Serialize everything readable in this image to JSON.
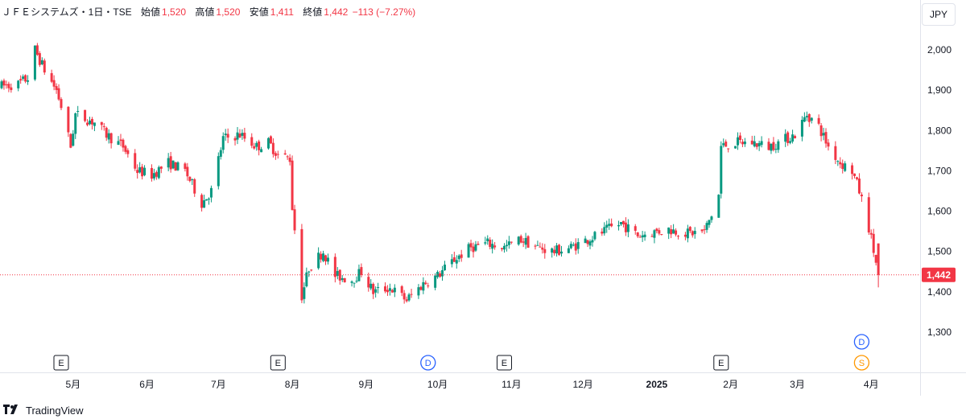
{
  "header": {
    "symbol": "ＪＦＥシステムズ・1日・TSE",
    "open_label": "始値",
    "open": "1,520",
    "high_label": "高値",
    "high": "1,520",
    "low_label": "安値",
    "low": "1,411",
    "close_label": "終値",
    "close": "1,442",
    "change": "−113 (−7.27%)"
  },
  "currency": "JPY",
  "branding": {
    "name": "TradingView"
  },
  "colors": {
    "up": "#089981",
    "down": "#f23645",
    "event_blue": "#2962ff",
    "event_orange": "#ff9800"
  },
  "chart_data": {
    "type": "candlestick",
    "title": "ＪＦＥシステムズ・1日・TSE",
    "currency": "JPY",
    "yticks": [
      1300,
      1400,
      1500,
      1600,
      1700,
      1800,
      1900,
      2000
    ],
    "ytick_labels": [
      "1,300",
      "1,400",
      "1,500",
      "1,600",
      "1,700",
      "1,800",
      "1,900",
      "2,000"
    ],
    "ylim": [
      1230,
      2080
    ],
    "x_labels": [
      {
        "label": "5月",
        "date": "2024-05-01"
      },
      {
        "label": "6月",
        "date": "2024-06-01"
      },
      {
        "label": "7月",
        "date": "2024-07-01"
      },
      {
        "label": "8月",
        "date": "2024-08-01"
      },
      {
        "label": "9月",
        "date": "2024-09-01"
      },
      {
        "label": "10月",
        "date": "2024-10-01"
      },
      {
        "label": "11月",
        "date": "2024-11-01"
      },
      {
        "label": "12月",
        "date": "2024-12-01"
      },
      {
        "label": "2025",
        "date": "2025-01-01",
        "bold": true
      },
      {
        "label": "2月",
        "date": "2025-02-01"
      },
      {
        "label": "3月",
        "date": "2025-03-01"
      },
      {
        "label": "4月",
        "date": "2025-04-01"
      }
    ],
    "last_price": 1442,
    "last_price_label": "1,442",
    "grid": false,
    "events": [
      {
        "type": "E",
        "date": "2024-04-26"
      },
      {
        "type": "E",
        "date": "2024-07-26"
      },
      {
        "type": "D",
        "date": "2024-09-27"
      },
      {
        "type": "E",
        "date": "2024-10-29"
      },
      {
        "type": "E",
        "date": "2025-01-28"
      },
      {
        "type": "D",
        "date": "2025-03-28"
      },
      {
        "type": "S",
        "date": "2025-03-28"
      }
    ],
    "anchors": [
      [
        "2024-04-01",
        1910
      ],
      [
        "2024-04-08",
        1915
      ],
      [
        "2024-04-12",
        1930
      ],
      [
        "2024-04-15",
        2000
      ],
      [
        "2024-04-19",
        1950
      ],
      [
        "2024-04-24",
        1900
      ],
      [
        "2024-04-26",
        1860
      ],
      [
        "2024-04-30",
        1760
      ],
      [
        "2024-05-02",
        1840
      ],
      [
        "2024-05-10",
        1820
      ],
      [
        "2024-05-15",
        1790
      ],
      [
        "2024-05-22",
        1760
      ],
      [
        "2024-05-28",
        1700
      ],
      [
        "2024-06-03",
        1690
      ],
      [
        "2024-06-10",
        1720
      ],
      [
        "2024-06-17",
        1700
      ],
      [
        "2024-06-24",
        1620
      ],
      [
        "2024-06-28",
        1650
      ],
      [
        "2024-07-03",
        1780
      ],
      [
        "2024-07-10",
        1790
      ],
      [
        "2024-07-17",
        1760
      ],
      [
        "2024-07-22",
        1770
      ],
      [
        "2024-07-26",
        1740
      ],
      [
        "2024-07-31",
        1730
      ],
      [
        "2024-08-01",
        1610
      ],
      [
        "2024-08-05",
        1390
      ],
      [
        "2024-08-08",
        1460
      ],
      [
        "2024-08-14",
        1500
      ],
      [
        "2024-08-19",
        1440
      ],
      [
        "2024-08-26",
        1430
      ],
      [
        "2024-08-30",
        1450
      ],
      [
        "2024-09-04",
        1400
      ],
      [
        "2024-09-11",
        1410
      ],
      [
        "2024-09-18",
        1380
      ],
      [
        "2024-09-25",
        1420
      ],
      [
        "2024-10-01",
        1440
      ],
      [
        "2024-10-08",
        1480
      ],
      [
        "2024-10-15",
        1510
      ],
      [
        "2024-10-22",
        1520
      ],
      [
        "2024-10-29",
        1510
      ],
      [
        "2024-11-05",
        1530
      ],
      [
        "2024-11-12",
        1510
      ],
      [
        "2024-11-19",
        1500
      ],
      [
        "2024-11-26",
        1510
      ],
      [
        "2024-12-03",
        1530
      ],
      [
        "2024-12-10",
        1550
      ],
      [
        "2024-12-17",
        1570
      ],
      [
        "2024-12-24",
        1540
      ],
      [
        "2025-01-06",
        1555
      ],
      [
        "2025-01-14",
        1545
      ],
      [
        "2025-01-21",
        1550
      ],
      [
        "2025-01-24",
        1590
      ],
      [
        "2025-01-27",
        1640
      ],
      [
        "2025-01-28",
        1760
      ],
      [
        "2025-02-03",
        1770
      ],
      [
        "2025-02-10",
        1770
      ],
      [
        "2025-02-17",
        1760
      ],
      [
        "2025-02-21",
        1770
      ],
      [
        "2025-02-28",
        1790
      ],
      [
        "2025-03-05",
        1840
      ],
      [
        "2025-03-10",
        1810
      ],
      [
        "2025-03-14",
        1760
      ],
      [
        "2025-03-19",
        1720
      ],
      [
        "2025-03-24",
        1700
      ],
      [
        "2025-03-27",
        1650
      ],
      [
        "2025-03-31",
        1560
      ],
      [
        "2025-04-04",
        1442
      ]
    ]
  }
}
